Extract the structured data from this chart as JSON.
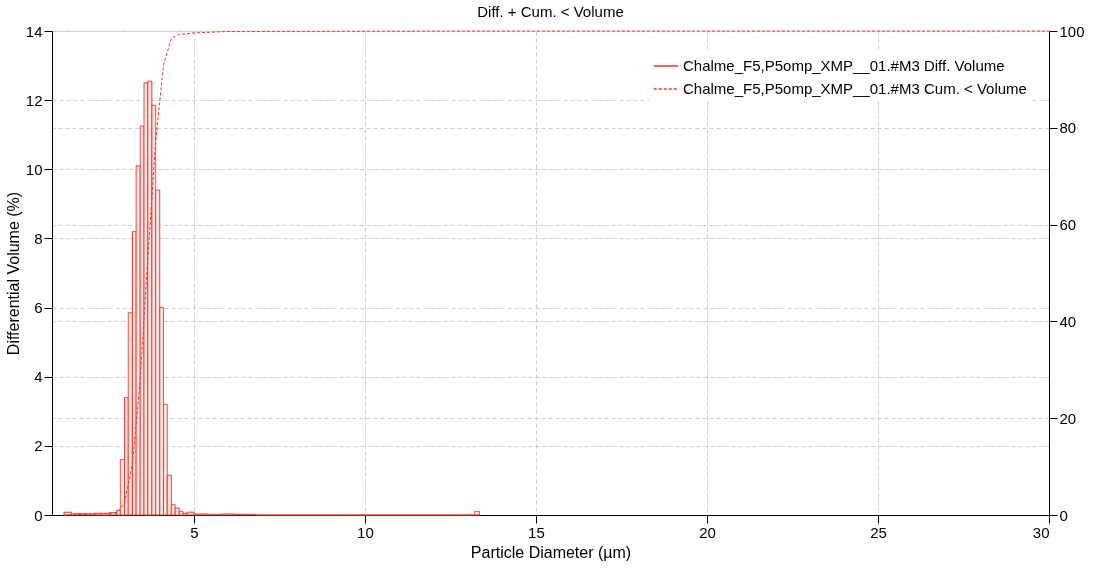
{
  "chart_data": {
    "type": "histogram",
    "title": "Diff. + Cum. < Volume",
    "xlabel": "Particle Diameter (µm)",
    "ylabel": "Differential Volume (%)",
    "xlim": [
      0.85,
      30
    ],
    "xticks": [
      5,
      10,
      15,
      20,
      25,
      30
    ],
    "ylim": [
      0,
      14
    ],
    "yticks": [
      0,
      2,
      4,
      6,
      8,
      10,
      12,
      14
    ],
    "y2lim": [
      0,
      100
    ],
    "y2ticks": [
      0,
      20,
      40,
      60,
      80,
      100
    ],
    "grid": true,
    "legend": "top right",
    "series": [
      {
        "name": "Chalme_F5,P5omp_XMP__01.#M3 Diff. Volume",
        "color": "#e8392e",
        "line_style": "solid",
        "bins": [
          1.2,
          1.42,
          1.64,
          1.86,
          2.08,
          2.3,
          2.52,
          2.74,
          2.85,
          2.97,
          3.08,
          3.2,
          3.31,
          3.43,
          3.54,
          3.65,
          3.77,
          3.88,
          4.0,
          4.11,
          4.22,
          4.34,
          4.45,
          4.57,
          4.68,
          4.8,
          5.0,
          5.4,
          5.8,
          6.2,
          6.8,
          13.2,
          13.35
        ],
        "values": [
          0.08,
          0.04,
          0.04,
          0.04,
          0.05,
          0.05,
          0.07,
          0.13,
          1.6,
          3.4,
          5.85,
          8.2,
          10.1,
          11.25,
          12.5,
          12.55,
          11.85,
          9.4,
          6.0,
          3.2,
          1.15,
          0.3,
          0.2,
          0.1,
          0.05,
          0.08,
          0.03,
          0.02,
          0.03,
          0.02,
          0,
          0.1
        ]
      },
      {
        "name": "Chalme_F5,P5omp_XMP__01.#M3 Cum. < Volume",
        "type": "line",
        "axis": "y2",
        "color": "#e8392e",
        "line_style": "dashed",
        "x": [
          1.2,
          2.74,
          2.97,
          3.2,
          3.43,
          3.65,
          3.88,
          4.11,
          4.34,
          4.57,
          5.0,
          6.0,
          13.3,
          30
        ],
        "values": [
          0,
          0.4,
          2.5,
          10.5,
          28,
          53,
          77,
          93,
          98.5,
          99.3,
          99.6,
          99.9,
          100,
          100
        ]
      }
    ]
  }
}
